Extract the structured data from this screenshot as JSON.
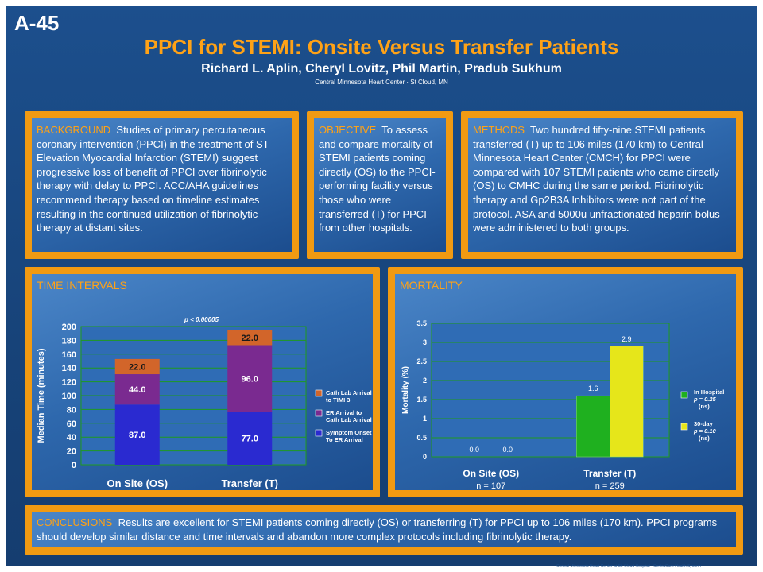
{
  "poster": {
    "id": "A-45",
    "title": "PPCI for STEMI: Onsite Versus Transfer Patients",
    "authors": "Richard L. Aplin, Cheryl Lovitz, Phil Martin, Pradub Sukhum",
    "affiliation": "Central Minnesota Heart Center  ·  St Cloud, MN"
  },
  "background": {
    "heading": "BACKGROUND",
    "text": "Studies of primary percutaneous coronary intervention  (PPCI) in the treatment of ST Elevation Myocardial Infarction (STEMI) suggest progressive loss of benefit of PPCI over fibrinolytic therapy with delay to PPCI.  ACC/AHA guidelines recommend therapy based on timeline estimates resulting in the continued utilization of fibrinolytic therapy at distant sites."
  },
  "objective": {
    "heading": "OBJECTIVE",
    "text": "To assess and compare mortality of STEMI patients coming directly (OS) to the PPCI-performing facility versus those who were transferred (T) for PPCI from other hospitals."
  },
  "methods": {
    "heading": "METHODS",
    "text": "Two hundred fifty-nine STEMI patients transferred (T) up to 106 miles (170 km) to Central Minnesota Heart Center (CMCH) for PPCI were compared with 107 STEMI patients who came directly (OS) to CMHC during the same period.  Fibrinolytic therapy and Gp2B3A Inhibitors were not part of the protocol.  ASA and 5000u unfractionated heparin bolus were administered to both groups."
  },
  "time_intervals": {
    "heading": "TIME INTERVALS",
    "pvalue": "p < 0.00005",
    "legend": [
      {
        "line1": "Cath Lab Arrival",
        "line2": "to TIMI 3"
      },
      {
        "line1": "ER Arrival to",
        "line2": "Cath Lab Arrival"
      },
      {
        "line1": "Symptom Onset",
        "line2": "To ER Arrival"
      }
    ]
  },
  "mortality": {
    "heading": "MORTALITY",
    "legend": [
      {
        "line1": "In Hospital",
        "line2": "p = 0.25",
        "line3": "(ns)"
      },
      {
        "line1": "30-day",
        "line2": "p = 0.10",
        "line3": "(ns)"
      }
    ],
    "n_labels": [
      "n = 107",
      "n = 259"
    ]
  },
  "conclusions": {
    "heading": "CONCLUSIONS",
    "text": "Results are excellent for STEMI patients coming directly (OS) or transferring (T) for PPCI up to 106 miles (170 km). PPCI programs should develop similar distance and time intervals and abandon more complex protocols including fibrinolytic therapy."
  },
  "footer": {
    "text": "Central Minnesota Heart Center at St. Cloud Hospital  ·  CentraCare Health System"
  },
  "colors": {
    "orange": "#f19a12",
    "segment_symptom": "#2a2ad0",
    "segment_er": "#7a2a90",
    "segment_cath": "#d2652a",
    "in_hospital": "#1fb01f",
    "thirty_day": "#e6e61a"
  },
  "chart_data": [
    {
      "type": "bar",
      "stacked": true,
      "categories": [
        "On Site (OS)",
        "Transfer (T)"
      ],
      "series": [
        {
          "name": "Symptom Onset To ER Arrival",
          "values": [
            87.0,
            77.0
          ]
        },
        {
          "name": "ER Arrival to Cath Lab Arrival",
          "values": [
            44.0,
            96.0
          ]
        },
        {
          "name": "Cath Lab Arrival to TIMI 3",
          "values": [
            22.0,
            22.0
          ]
        }
      ],
      "ylabel": "Median Time (minutes)",
      "ylim": [
        0,
        200
      ],
      "yticks": [
        0,
        20,
        40,
        60,
        80,
        100,
        120,
        140,
        160,
        180,
        200
      ],
      "grid": true,
      "legend": "right"
    },
    {
      "type": "bar",
      "stacked": false,
      "categories": [
        "On Site (OS)",
        "Transfer (T)"
      ],
      "series": [
        {
          "name": "In Hospital",
          "values": [
            0.0,
            1.6
          ]
        },
        {
          "name": "30-day",
          "values": [
            0.0,
            2.9
          ]
        }
      ],
      "ylabel": "Mortality (%)",
      "ylim": [
        0,
        3.5
      ],
      "yticks": [
        0,
        0.5,
        1,
        1.5,
        2,
        2.5,
        3,
        3.5
      ],
      "grid": true,
      "legend": "right"
    }
  ]
}
